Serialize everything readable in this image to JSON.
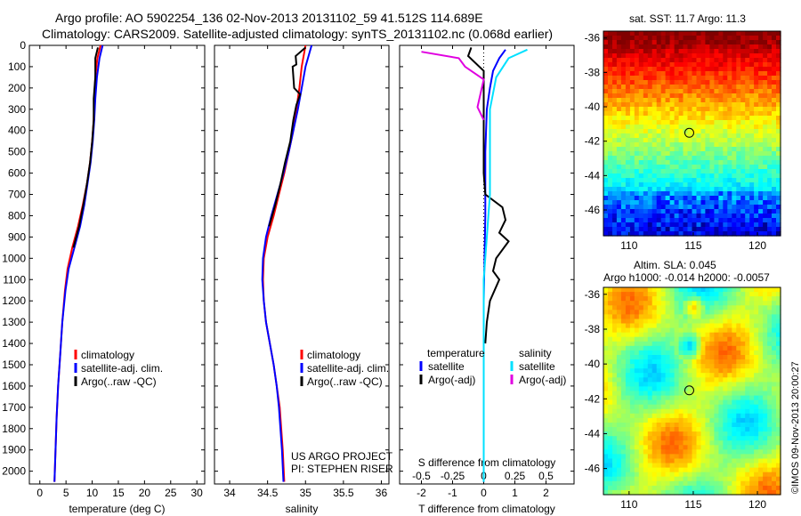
{
  "header": {
    "title_line1": "Argo profile: AO 5902254_136 02-Nov-2013 20131102_59 41.512S 114.689E",
    "title_line2": "Climatology: CARS2009. Satellite-adjusted climatology: synTS_20131102.nc (0.068d earlier)"
  },
  "chart_data": [
    {
      "type": "line",
      "xlabel": "temperature (deg C)",
      "ylabel": "",
      "xlim": [
        -2,
        31.5
      ],
      "ylim": [
        2060,
        0
      ],
      "xticks": [
        0,
        5,
        10,
        15,
        20,
        25,
        30
      ],
      "yticks": [
        0,
        100,
        200,
        300,
        400,
        500,
        600,
        700,
        800,
        900,
        1000,
        1100,
        1200,
        1300,
        1400,
        1500,
        1600,
        1700,
        1800,
        1900,
        2000
      ],
      "legend": [
        "climatology",
        "satellite-adj. clim.",
        "Argo(..raw -QC)"
      ],
      "legend_position": "bottom-right",
      "series": [
        {
          "name": "climatology",
          "color": "#ff0000",
          "points": [
            [
              11.6,
              0
            ],
            [
              11.0,
              60
            ],
            [
              10.6,
              150
            ],
            [
              10.4,
              250
            ],
            [
              10.3,
              350
            ],
            [
              10.0,
              450
            ],
            [
              9.6,
              550
            ],
            [
              9.0,
              650
            ],
            [
              8.2,
              750
            ],
            [
              7.3,
              850
            ],
            [
              6.2,
              950
            ],
            [
              5.3,
              1050
            ],
            [
              4.8,
              1150
            ],
            [
              4.3,
              1300
            ],
            [
              3.9,
              1450
            ],
            [
              3.5,
              1600
            ],
            [
              3.2,
              1750
            ],
            [
              3.0,
              1900
            ],
            [
              2.8,
              2050
            ]
          ]
        },
        {
          "name": "satellite-adj. clim.",
          "color": "#0000ff",
          "points": [
            [
              12.0,
              0
            ],
            [
              11.4,
              60
            ],
            [
              10.9,
              150
            ],
            [
              10.6,
              250
            ],
            [
              10.4,
              350
            ],
            [
              10.1,
              450
            ],
            [
              9.7,
              550
            ],
            [
              9.1,
              650
            ],
            [
              8.5,
              750
            ],
            [
              7.7,
              850
            ],
            [
              6.6,
              950
            ],
            [
              5.5,
              1050
            ],
            [
              4.9,
              1150
            ],
            [
              4.3,
              1300
            ],
            [
              3.9,
              1450
            ],
            [
              3.5,
              1600
            ],
            [
              3.2,
              1750
            ],
            [
              3.0,
              1900
            ],
            [
              2.8,
              2050
            ]
          ]
        },
        {
          "name": "Argo(..raw -QC)",
          "color": "#000000",
          "points": [
            [
              11.1,
              10
            ],
            [
              10.6,
              60
            ],
            [
              10.6,
              150
            ],
            [
              10.3,
              250
            ],
            [
              10.3,
              350
            ],
            [
              10.0,
              450
            ],
            [
              9.6,
              550
            ],
            [
              9.0,
              650
            ],
            [
              8.3,
              750
            ],
            [
              7.5,
              850
            ],
            [
              6.4,
              950
            ]
          ]
        }
      ]
    },
    {
      "type": "line",
      "xlabel": "salinity",
      "ylabel": "",
      "xlim": [
        33.8,
        36.1
      ],
      "ylim": [
        2060,
        0
      ],
      "xticks": [
        34,
        34.5,
        35,
        35.5,
        36
      ],
      "legend": [
        "climatology",
        "satellite-adj. clim.",
        "Argo(..raw -QC)"
      ],
      "legend_position": "bottom-right",
      "annotations": [
        "US ARGO PROJECT",
        "PI: STEPHEN RISER"
      ],
      "series": [
        {
          "name": "climatology",
          "color": "#ff0000",
          "points": [
            [
              35.0,
              0
            ],
            [
              34.95,
              100
            ],
            [
              34.92,
              200
            ],
            [
              34.88,
              300
            ],
            [
              34.84,
              400
            ],
            [
              34.78,
              500
            ],
            [
              34.72,
              600
            ],
            [
              34.65,
              700
            ],
            [
              34.58,
              800
            ],
            [
              34.5,
              900
            ],
            [
              34.45,
              1000
            ],
            [
              34.44,
              1100
            ],
            [
              34.45,
              1200
            ],
            [
              34.48,
              1300
            ],
            [
              34.53,
              1400
            ],
            [
              34.58,
              1500
            ],
            [
              34.62,
              1600
            ],
            [
              34.66,
              1700
            ],
            [
              34.68,
              1800
            ],
            [
              34.7,
              1900
            ],
            [
              34.72,
              2050
            ]
          ]
        },
        {
          "name": "satellite-adj. clim.",
          "color": "#0000ff",
          "points": [
            [
              35.08,
              0
            ],
            [
              35.0,
              100
            ],
            [
              34.95,
              200
            ],
            [
              34.9,
              300
            ],
            [
              34.84,
              400
            ],
            [
              34.78,
              500
            ],
            [
              34.71,
              600
            ],
            [
              34.63,
              700
            ],
            [
              34.55,
              800
            ],
            [
              34.48,
              900
            ],
            [
              34.44,
              1000
            ],
            [
              34.43,
              1100
            ],
            [
              34.45,
              1200
            ],
            [
              34.48,
              1300
            ],
            [
              34.53,
              1400
            ],
            [
              34.58,
              1500
            ],
            [
              34.62,
              1600
            ],
            [
              34.65,
              1700
            ],
            [
              34.67,
              1800
            ],
            [
              34.69,
              1900
            ],
            [
              34.71,
              2050
            ]
          ]
        },
        {
          "name": "Argo(..raw -QC)",
          "color": "#000000",
          "points": [
            [
              35.0,
              10
            ],
            [
              34.87,
              50
            ],
            [
              34.88,
              90
            ],
            [
              34.83,
              100
            ],
            [
              34.85,
              200
            ],
            [
              34.93,
              230
            ],
            [
              34.88,
              280
            ],
            [
              34.84,
              350
            ],
            [
              34.8,
              450
            ],
            [
              34.73,
              550
            ],
            [
              34.67,
              650
            ],
            [
              34.6,
              750
            ],
            [
              34.52,
              850
            ]
          ]
        }
      ]
    },
    {
      "type": "line",
      "xlabel": "T difference from climatology",
      "x2label": "S difference from climatology",
      "ylabel": "",
      "xlim": [
        -2.7,
        2.9
      ],
      "x2lim": [
        -0.675,
        0.725
      ],
      "ylim": [
        2060,
        0
      ],
      "xticks": [
        -2,
        -1,
        0,
        1,
        2
      ],
      "x2ticks": [
        -0.5,
        -0.25,
        0,
        0.25,
        0.5
      ],
      "legend": {
        "temperature": "temperature",
        "salinity": "salinity",
        "items": [
          [
            "satellite",
            "Argo(-adj)"
          ],
          [
            "satellite",
            "Argo(-adj)"
          ]
        ]
      },
      "legend_position": "bottom-right",
      "series": [
        {
          "name": "temperature satellite",
          "color": "#0000ff",
          "points": [
            [
              0.7,
              20
            ],
            [
              0.5,
              60
            ],
            [
              0.3,
              120
            ],
            [
              0.2,
              200
            ],
            [
              0.1,
              300
            ],
            [
              0.05,
              500
            ],
            [
              0.05,
              800
            ],
            [
              0.0,
              1200
            ],
            [
              0.0,
              1600
            ],
            [
              0.0,
              2050
            ]
          ]
        },
        {
          "name": "temperature Argo(-adj)",
          "color": "#000000",
          "points": [
            [
              -0.4,
              10
            ],
            [
              -0.5,
              50
            ],
            [
              0.0,
              120
            ],
            [
              0.0,
              300
            ],
            [
              0.0,
              600
            ],
            [
              0.05,
              700
            ],
            [
              0.6,
              760
            ],
            [
              0.7,
              820
            ],
            [
              0.5,
              880
            ],
            [
              0.8,
              920
            ],
            [
              0.4,
              1000
            ],
            [
              0.3,
              1060
            ],
            [
              0.5,
              1100
            ],
            [
              0.2,
              1200
            ],
            [
              0.1,
              1300
            ],
            [
              0.05,
              1400
            ]
          ]
        },
        {
          "name": "salinity satellite",
          "color": "#00e0ff",
          "points": [
            [
              0.35,
              20
            ],
            [
              0.2,
              60
            ],
            [
              0.1,
              150
            ],
            [
              0.05,
              300
            ],
            [
              0.05,
              700
            ],
            [
              0.0,
              1100
            ],
            [
              0.0,
              1500
            ],
            [
              0.0,
              2050
            ]
          ]
        },
        {
          "name": "salinity Argo(-adj)",
          "color": "#e000e0",
          "points": [
            [
              -0.5,
              30
            ],
            [
              -0.2,
              60
            ],
            [
              -0.15,
              100
            ],
            [
              0.0,
              160
            ],
            [
              -0.05,
              290
            ],
            [
              0.0,
              350
            ]
          ]
        }
      ]
    },
    {
      "type": "heatmap",
      "title": "sat. SST: 11.7 Argo: 11.3",
      "xticks": [
        110,
        115,
        120
      ],
      "yticks": [
        -36,
        -38,
        -40,
        -42,
        -44,
        -46
      ],
      "xlim": [
        108,
        121.8
      ],
      "ylim": [
        -47.5,
        -35.6
      ],
      "marker": [
        114.689,
        -41.512
      ]
    },
    {
      "type": "heatmap",
      "title": "Altim. SLA: 0.045",
      "subtitle": "Argo h1000: -0.014 h2000: -0.0057",
      "xticks": [
        110,
        115,
        120
      ],
      "yticks": [
        -36,
        -38,
        -40,
        -42,
        -44,
        -46
      ],
      "xlim": [
        108,
        121.8
      ],
      "ylim": [
        -47.5,
        -35.6
      ],
      "marker": [
        114.689,
        -41.512
      ],
      "stamp": "©IMOS 09-Nov-2013 20:00:27"
    }
  ]
}
